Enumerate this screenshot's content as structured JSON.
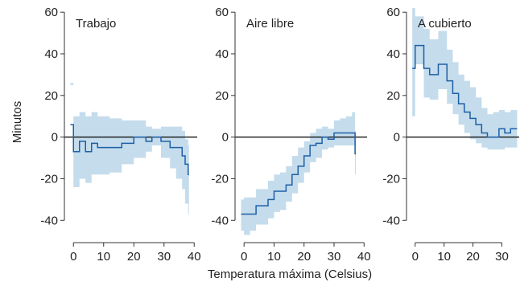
{
  "chart_data": {
    "type": "line",
    "xlabel": "Temperatura máxima (Celsius)",
    "ylabel": "Minutos",
    "ylim": [
      -48,
      62
    ],
    "yticks": [
      -40,
      -20,
      0,
      20,
      40,
      60
    ],
    "colors": {
      "line": "#1f5fa6",
      "band": "#c4dcec",
      "zero": "#000000",
      "axis": "#333333"
    },
    "panels": [
      {
        "title": "Trabajo",
        "xlim": [
          -3,
          41
        ],
        "xticks": [
          0,
          10,
          20,
          30,
          40
        ],
        "x": [
          -1,
          0,
          2,
          4,
          6,
          8,
          12,
          16,
          20,
          24,
          26,
          29,
          32,
          34,
          36,
          37,
          38
        ],
        "y": [
          6,
          -7,
          -2,
          -7,
          -3,
          -5,
          -5,
          -3,
          0,
          -2,
          0,
          -2,
          -5,
          -5,
          -9,
          -13,
          -18
        ],
        "lower": [
          25,
          -24,
          -20,
          -22,
          -18,
          -18,
          -17,
          -13,
          -10,
          -7,
          -4,
          -10,
          -15,
          -20,
          -25,
          -32,
          -37
        ],
        "upper": [
          26,
          10,
          12,
          10,
          12,
          10,
          9,
          8,
          8,
          5,
          4,
          5,
          5,
          5,
          3,
          -1,
          -4
        ]
      },
      {
        "title": "Aire libre",
        "xlim": [
          -3,
          41
        ],
        "xticks": [
          0,
          10,
          20,
          30,
          40
        ],
        "x": [
          -1,
          0,
          2,
          4,
          6,
          8,
          10,
          12,
          14,
          16,
          18,
          20,
          22,
          24,
          26,
          28,
          30,
          32,
          34,
          36,
          37
        ],
        "y": [
          -37,
          -37,
          -37,
          -33,
          -33,
          -30,
          -26,
          -26,
          -23,
          -18,
          -14,
          -9,
          -4,
          -3,
          0,
          -1,
          2,
          2,
          2,
          2,
          -8
        ],
        "lower": [
          -45,
          -47,
          -45,
          -42,
          -42,
          -39,
          -36,
          -35,
          -31,
          -27,
          -22,
          -17,
          -12,
          -10,
          -6,
          -5,
          -4,
          -4,
          -4,
          -4,
          -18
        ],
        "upper": [
          -30,
          -29,
          -29,
          -25,
          -25,
          -21,
          -18,
          -17,
          -14,
          -9,
          -5,
          -2,
          2,
          4,
          5,
          4,
          8,
          9,
          10,
          12,
          3
        ]
      },
      {
        "title": "A cubierto",
        "xlim": [
          -3,
          36
        ],
        "xticks": [
          0,
          10,
          20,
          30
        ],
        "x": [
          -1,
          0,
          3,
          5,
          8,
          11,
          13,
          15,
          17,
          19,
          21,
          23,
          25,
          27,
          29,
          31,
          33,
          35
        ],
        "y": [
          33,
          44,
          33,
          30,
          35,
          27,
          21,
          16,
          12,
          9,
          6,
          2,
          0,
          0,
          4,
          2,
          4,
          4
        ],
        "lower": [
          10,
          35,
          19,
          18,
          23,
          16,
          11,
          6,
          2,
          -1,
          -3,
          -5,
          -6,
          -6,
          -6,
          -5,
          -5,
          -5
        ],
        "upper": [
          62,
          58,
          52,
          47,
          51,
          42,
          36,
          30,
          27,
          24,
          19,
          14,
          11,
          12,
          13,
          12,
          13,
          13
        ]
      }
    ]
  }
}
